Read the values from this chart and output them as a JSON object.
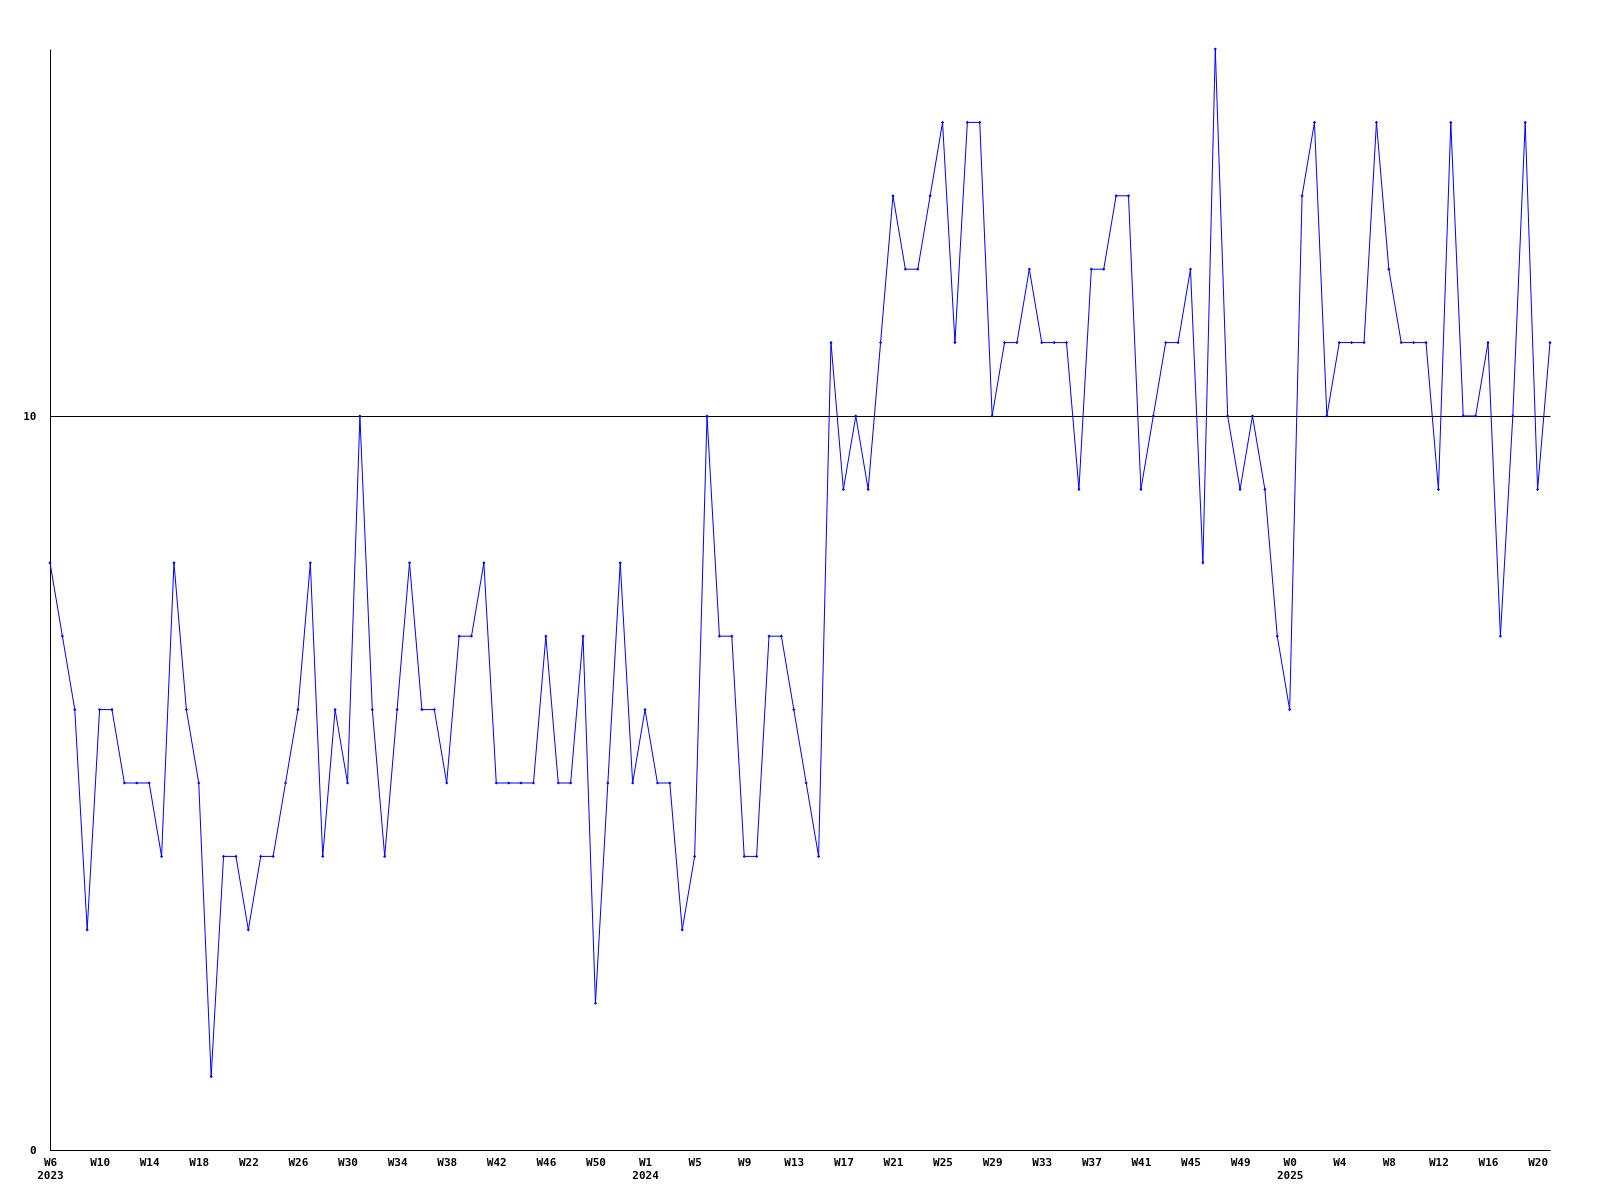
{
  "chart_data": {
    "type": "line",
    "categories": [
      "W6\n2023",
      null,
      null,
      null,
      "W10",
      null,
      null,
      null,
      "W14",
      null,
      null,
      null,
      "W18",
      null,
      null,
      null,
      "W22",
      null,
      null,
      null,
      "W26",
      null,
      null,
      null,
      "W30",
      null,
      null,
      null,
      "W34",
      null,
      null,
      null,
      "W38",
      null,
      null,
      null,
      "W42",
      null,
      null,
      null,
      "W46",
      null,
      null,
      null,
      "W50",
      null,
      null,
      null,
      "W1\n2024",
      null,
      null,
      null,
      "W5",
      null,
      null,
      null,
      "W9",
      null,
      null,
      null,
      "W13",
      null,
      null,
      null,
      "W17",
      null,
      null,
      null,
      "W21",
      null,
      null,
      null,
      "W25",
      null,
      null,
      null,
      "W29",
      null,
      null,
      null,
      "W33",
      null,
      null,
      null,
      "W37",
      null,
      null,
      null,
      "W41",
      null,
      null,
      null,
      "W45",
      null,
      null,
      null,
      "W49",
      null,
      null,
      null,
      "W0\n2025",
      null,
      null,
      null,
      "W4",
      null,
      null,
      null,
      "W8",
      null,
      null,
      null,
      "W12",
      null,
      null,
      null,
      "W16",
      null,
      null,
      null,
      "W20",
      null
    ],
    "series": [
      {
        "color": "#0000ff",
        "values": [
          8,
          7,
          6,
          3,
          6,
          6,
          5,
          5,
          5,
          4,
          8,
          6,
          5,
          1,
          4,
          4,
          3,
          4,
          4,
          5,
          6,
          8,
          4,
          6,
          5,
          10,
          6,
          4,
          6,
          8,
          6,
          6,
          5,
          7,
          7,
          8,
          5,
          5,
          5,
          5,
          7,
          5,
          5,
          7,
          2,
          5,
          8,
          5,
          6,
          5,
          5,
          3,
          4,
          10,
          7,
          7,
          4,
          4,
          7,
          7,
          6,
          5,
          4,
          11,
          9,
          10,
          9,
          11,
          13,
          12,
          12,
          13,
          14,
          11,
          14,
          14,
          10,
          11,
          11,
          12,
          11,
          11,
          11,
          9,
          12,
          12,
          13,
          13,
          9,
          10,
          11,
          11,
          12,
          8,
          15,
          10,
          9,
          10,
          9,
          7,
          6,
          13,
          14,
          10,
          11,
          11,
          11,
          14,
          12,
          11,
          11,
          11,
          9,
          14,
          10,
          10,
          11,
          7,
          10,
          14,
          9,
          11
        ]
      }
    ],
    "ylim": [
      0,
      15
    ],
    "yticks": [
      0,
      10
    ],
    "grid": "y",
    "marker": "diamond",
    "line_style": "solid"
  }
}
